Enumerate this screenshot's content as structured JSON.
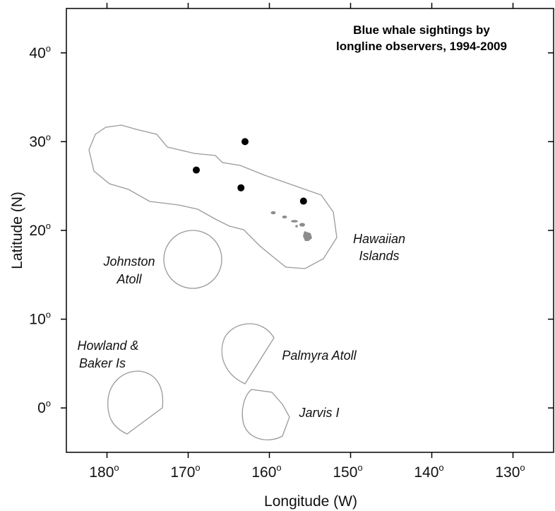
{
  "title_lines": [
    "Blue whale sightings by",
    "longline observers, 1994-2009"
  ],
  "axes": {
    "xlabel": "Longitude (W)",
    "ylabel": "Latitude (N)",
    "x_ticks": [
      {
        "value": 180,
        "label": "180",
        "sup": "o"
      },
      {
        "value": 170,
        "label": "170",
        "sup": "o"
      },
      {
        "value": 160,
        "label": "160",
        "sup": "o"
      },
      {
        "value": 150,
        "label": "150",
        "sup": "o"
      },
      {
        "value": 140,
        "label": "140",
        "sup": "o"
      },
      {
        "value": 130,
        "label": "130",
        "sup": "o"
      }
    ],
    "y_ticks": [
      {
        "value": 0,
        "label": "0",
        "sup": "o"
      },
      {
        "value": 10,
        "label": "10",
        "sup": "o"
      },
      {
        "value": 20,
        "label": "20",
        "sup": "o"
      },
      {
        "value": 30,
        "label": "30",
        "sup": "o"
      },
      {
        "value": 40,
        "label": "40",
        "sup": "o"
      }
    ],
    "xlim": [
      185,
      125
    ],
    "ylim": [
      -5,
      45
    ]
  },
  "region_labels": {
    "hawaiian_1": "Hawaiian",
    "hawaiian_2": "Islands",
    "johnston_1": "Johnston",
    "johnston_2": "Atoll",
    "howland_1": "Howland &",
    "howland_2": "Baker Is",
    "palmyra": "Palmyra Atoll",
    "jarvis": "Jarvis I"
  },
  "sightings": [
    {
      "lon_w": 163.0,
      "lat_n": 30.0
    },
    {
      "lon_w": 169.0,
      "lat_n": 26.8
    },
    {
      "lon_w": 163.5,
      "lat_n": 24.8
    },
    {
      "lon_w": 155.8,
      "lat_n": 23.3
    }
  ],
  "colors": {
    "zone_outline": "#9a9a9a",
    "island_fill": "#8c8c8c",
    "sighting": "#000000",
    "axis": "#000000"
  }
}
